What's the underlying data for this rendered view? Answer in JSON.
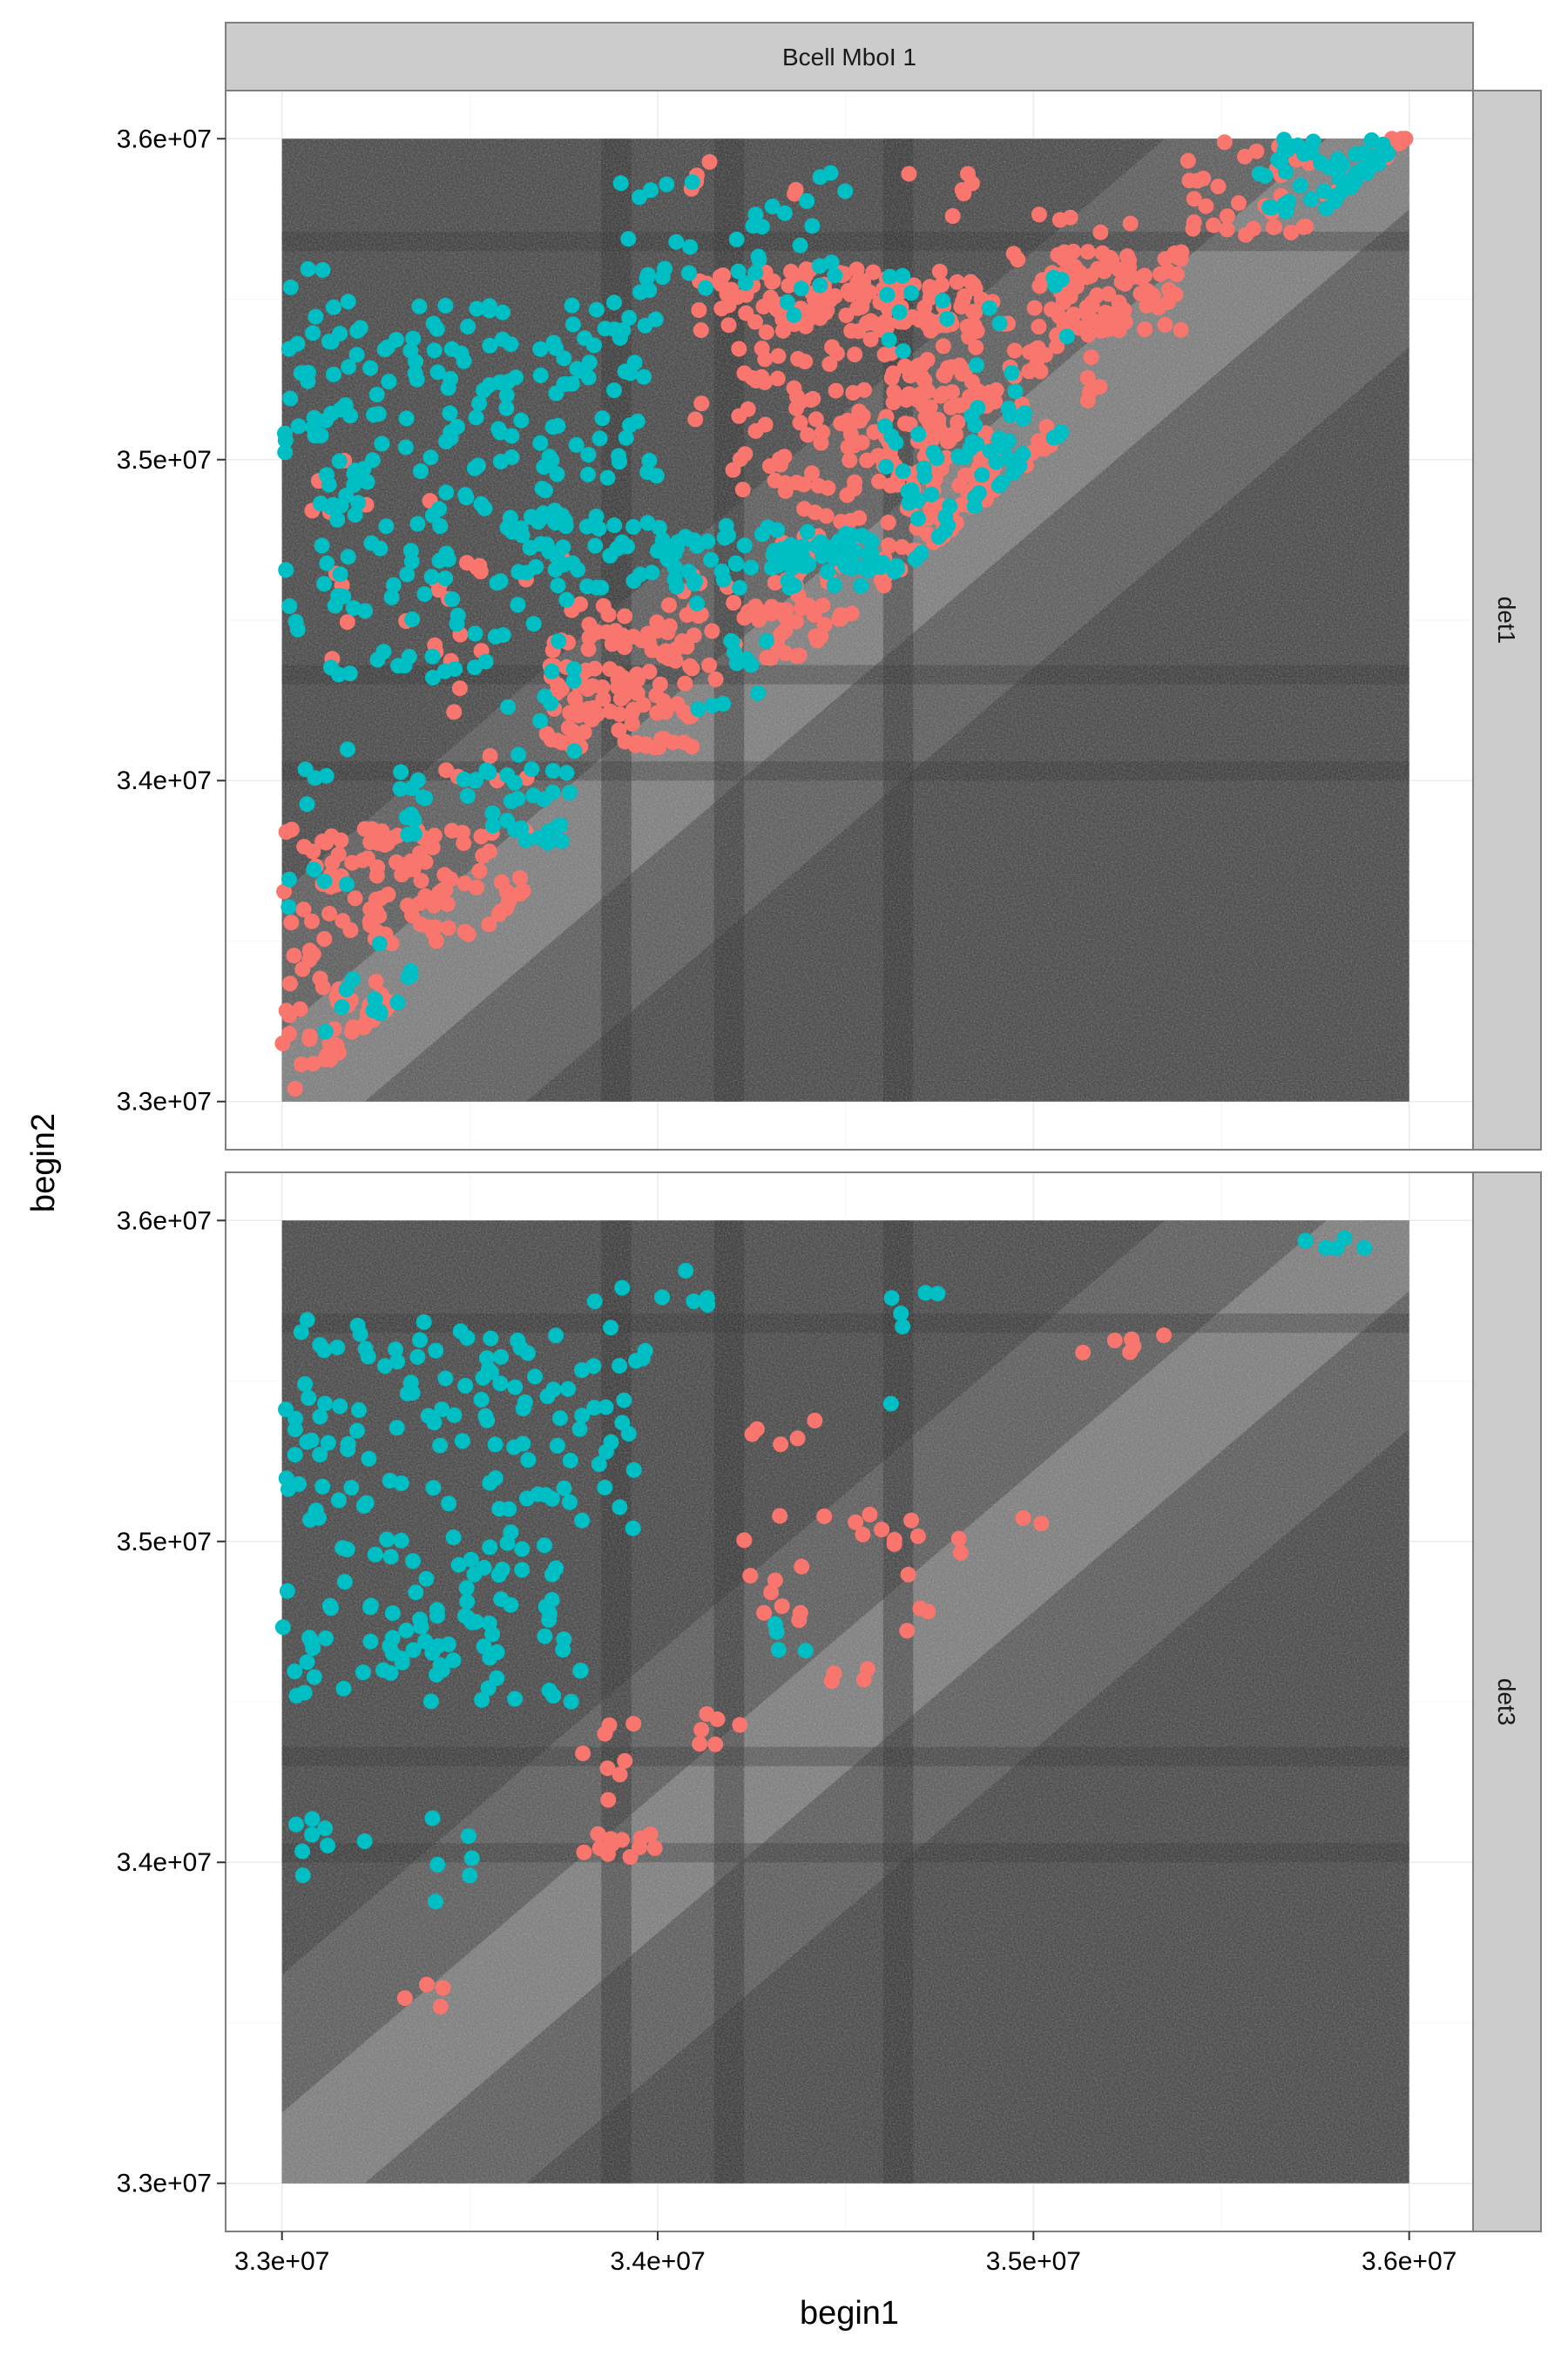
{
  "chart_data": {
    "type": "scatter",
    "title": "",
    "xlabel": "begin1",
    "ylabel": "begin2",
    "column_strip": "Bcell MboI 1",
    "facets": [
      "det1",
      "det3"
    ],
    "x_ticks": [
      33000000,
      34000000,
      35000000,
      36000000
    ],
    "x_tick_labels": [
      "3.3e+07",
      "3.4e+07",
      "3.5e+07",
      "3.6e+07"
    ],
    "y_ticks": [
      33000000,
      34000000,
      35000000,
      36000000
    ],
    "y_tick_labels": [
      "3.3e+07",
      "3.4e+07",
      "3.5e+07",
      "3.6e+07"
    ],
    "xlim": [
      32850000,
      36170000
    ],
    "ylim": [
      32850000,
      36150000
    ],
    "heatmap_range": [
      33000000,
      36000000
    ],
    "background": "grayscale heatmap (Hi-C contact matrix)",
    "grid": true,
    "legend": "none",
    "colors": {
      "red": "#F8766D",
      "teal": "#00BFC4",
      "panel_border": "#7f7f7f",
      "strip_fill": "#cccccc",
      "grid": "#ebebeb"
    },
    "series": [
      {
        "facet": "det1",
        "color": "red",
        "clusters": [
          {
            "x": [
              34100000,
              34850000
            ],
            "y": [
              35400000,
              35600000
            ],
            "n": 130
          },
          {
            "x": [
              34100000,
              34750000
            ],
            "y": [
              34900000,
              35400000
            ],
            "n": 90
          },
          {
            "x": [
              34500000,
              34900000
            ],
            "y": [
              34700000,
              35300000
            ],
            "n": 90
          },
          {
            "x": [
              34700000,
              35200000
            ],
            "y": [
              34900000,
              35500000
            ],
            "n": 70
          },
          {
            "x": [
              35000000,
              35400000
            ],
            "y": [
              35400000,
              35650000
            ],
            "n": 80
          },
          {
            "x": [
              35400000,
              36000000
            ],
            "y": [
              35700000,
              36000000
            ],
            "n": 45
          },
          {
            "x": [
              33700000,
              34100000
            ],
            "y": [
              34100000,
              34550000
            ],
            "n": 110
          },
          {
            "x": [
              34000000,
              34500000
            ],
            "y": [
              34300000,
              34650000
            ],
            "n": 45
          },
          {
            "x": [
              34300000,
              34900000
            ],
            "y": [
              34500000,
              34850000
            ],
            "n": 50
          },
          {
            "x": [
              33000000,
              33650000
            ],
            "y": [
              33500000,
              33850000
            ],
            "n": 110
          },
          {
            "x": [
              33000000,
              33300000
            ],
            "y": [
              33000000,
              33500000
            ],
            "n": 55
          },
          {
            "x": [
              33400000,
              33900000
            ],
            "y": [
              34000000,
              34700000
            ],
            "n": 25
          },
          {
            "x": [
              33050000,
              33500000
            ],
            "y": [
              34300000,
              35100000
            ],
            "n": 12
          },
          {
            "x": [
              34000000,
              34450000
            ],
            "y": [
              35800000,
              36000000
            ],
            "n": 6
          },
          {
            "x": [
              34600000,
              35300000
            ],
            "y": [
              35600000,
              35900000
            ],
            "n": 14
          }
        ]
      },
      {
        "facet": "det1",
        "color": "teal",
        "clusters": [
          {
            "x": [
              33000000,
              34000000
            ],
            "y": [
              34900000,
              35500000
            ],
            "n": 150
          },
          {
            "x": [
              33100000,
              33600000
            ],
            "y": [
              34300000,
              34900000
            ],
            "n": 60
          },
          {
            "x": [
              33600000,
              34000000
            ],
            "y": [
              34600000,
              34850000
            ],
            "n": 45
          },
          {
            "x": [
              33900000,
              34500000
            ],
            "y": [
              35400000,
              35900000
            ],
            "n": 40
          },
          {
            "x": [
              34000000,
              34600000
            ],
            "y": [
              34600000,
              34800000
            ],
            "n": 60
          },
          {
            "x": [
              34300000,
              34900000
            ],
            "y": [
              34650000,
              34750000
            ],
            "n": 40
          },
          {
            "x": [
              34600000,
              35100000
            ],
            "y": [
              35000000,
              35600000
            ],
            "n": 40
          },
          {
            "x": [
              35600000,
              35950000
            ],
            "y": [
              35750000,
              36000000
            ],
            "n": 55
          },
          {
            "x": [
              33300000,
              33800000
            ],
            "y": [
              33800000,
              34050000
            ],
            "n": 40
          },
          {
            "x": [
              33600000,
              33800000
            ],
            "y": [
              34050000,
              34700000
            ],
            "n": 15
          },
          {
            "x": [
              33000000,
              33200000
            ],
            "y": [
              33200000,
              35700000
            ],
            "n": 30
          },
          {
            "x": [
              34600000,
              35000000
            ],
            "y": [
              34800000,
              35100000
            ],
            "n": 25
          },
          {
            "x": [
              34100000,
              34300000
            ],
            "y": [
              34200000,
              34600000
            ],
            "n": 12
          },
          {
            "x": [
              33150000,
              33350000
            ],
            "y": [
              33100000,
              33500000
            ],
            "n": 10
          }
        ]
      },
      {
        "facet": "det3",
        "color": "teal",
        "clusters": [
          {
            "x": [
              33000000,
              33800000
            ],
            "y": [
              34500000,
              35700000
            ],
            "n": 200
          },
          {
            "x": [
              33800000,
              34000000
            ],
            "y": [
              35000000,
              35800000
            ],
            "n": 20
          },
          {
            "x": [
              34000000,
              34150000
            ],
            "y": [
              35700000,
              35900000
            ],
            "n": 5
          },
          {
            "x": [
              33000000,
              33250000
            ],
            "y": [
              33950000,
              34150000
            ],
            "n": 8
          },
          {
            "x": [
              33400000,
              33700000
            ],
            "y": [
              33850000,
              34150000
            ],
            "n": 6
          },
          {
            "x": [
              34250000,
              34400000
            ],
            "y": [
              34600000,
              34750000
            ],
            "n": 4
          },
          {
            "x": [
              34600000,
              34750000
            ],
            "y": [
              35400000,
              35900000
            ],
            "n": 6
          },
          {
            "x": [
              35700000,
              35900000
            ],
            "y": [
              35900000,
              35950000
            ],
            "n": 5
          }
        ]
      },
      {
        "facet": "det3",
        "color": "red",
        "clusters": [
          {
            "x": [
              33800000,
              34000000
            ],
            "y": [
              34000000,
              34100000
            ],
            "n": 12
          },
          {
            "x": [
              33800000,
              33950000
            ],
            "y": [
              34150000,
              34450000
            ],
            "n": 8
          },
          {
            "x": [
              34100000,
              34250000
            ],
            "y": [
              34300000,
              34500000
            ],
            "n": 6
          },
          {
            "x": [
              34200000,
              34850000
            ],
            "y": [
              34700000,
              35100000
            ],
            "n": 25
          },
          {
            "x": [
              34450000,
              34600000
            ],
            "y": [
              34550000,
              34650000
            ],
            "n": 4
          },
          {
            "x": [
              34250000,
              34450000
            ],
            "y": [
              35300000,
              35500000
            ],
            "n": 5
          },
          {
            "x": [
              35100000,
              35350000
            ],
            "y": [
              35500000,
              35650000
            ],
            "n": 6
          },
          {
            "x": [
              33300000,
              33450000
            ],
            "y": [
              33550000,
              33650000
            ],
            "n": 4
          },
          {
            "x": [
              34950000,
              35050000
            ],
            "y": [
              35050000,
              35100000
            ],
            "n": 2
          }
        ]
      }
    ]
  }
}
